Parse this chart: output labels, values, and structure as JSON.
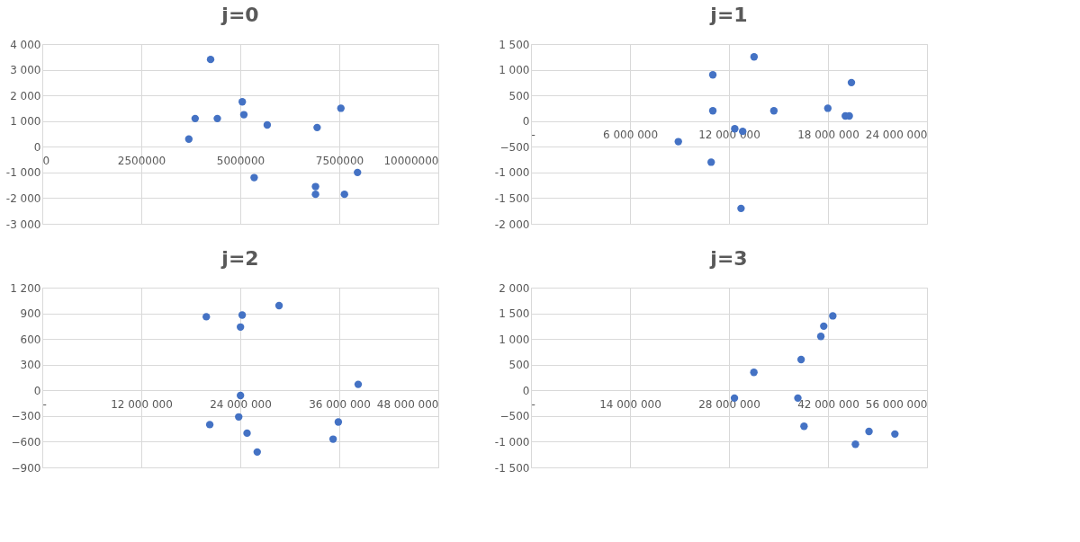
{
  "chart_data": [
    {
      "type": "scatter",
      "title": "j=0",
      "marker": "circle",
      "grid": true,
      "x": [
        3700000.0,
        3860000.0,
        4250000.0,
        4420000.0,
        5050000.0,
        5090000.0,
        5350000.0,
        5680000.0,
        6900000.0,
        6900000.0,
        6940000.0,
        7540000.0,
        7630000.0,
        7960000.0
      ],
      "series": [
        {
          "color": "#4472c4",
          "values": [
            300,
            1100,
            3400,
            1100,
            1750,
            1250,
            -1200,
            850,
            -1550,
            -1850,
            750,
            1500,
            -1850,
            -1000
          ]
        }
      ],
      "xlim": [
        0,
        10000000
      ],
      "xticks": [
        0,
        2500000,
        5000000,
        7500000,
        10000000
      ],
      "ylim": [
        -3000,
        4000
      ],
      "yticks": [
        {
          "value": -3000,
          "label": "-3 000"
        },
        {
          "value": -2000,
          "label": "-2 000"
        },
        {
          "value": -1000,
          "label": "-1 000"
        },
        0,
        {
          "value": 1000,
          "label": "1 000"
        },
        {
          "value": 2000,
          "label": "2 000"
        },
        {
          "value": 3000,
          "label": "3 000"
        },
        {
          "value": 4000,
          "label": "4 000"
        }
      ]
    },
    {
      "type": "scatter",
      "title": "j=1",
      "marker": "circle",
      "grid": true,
      "x": [
        8930000.0,
        10920000.0,
        11020000.0,
        11020000.0,
        12350000.0,
        12830000.0,
        12730000.0,
        13520000.0,
        14720000.0,
        17990000.0,
        19050000.0,
        19290000.0,
        19420000.0
      ],
      "series": [
        {
          "color": "#4472c4",
          "values": [
            -400,
            -800,
            900,
            200,
            -150,
            -200,
            -1700,
            1250,
            200,
            250,
            100,
            100,
            750
          ]
        }
      ],
      "xlim": [
        0,
        24000000
      ],
      "xticks": [
        {
          "value": 0,
          "label": "-"
        },
        {
          "value": 6000000,
          "label": "6 000 000"
        },
        {
          "value": 12000000,
          "label": "12 000 000"
        },
        {
          "value": 18000000,
          "label": "18 000 000"
        },
        {
          "value": 24000000,
          "label": "24 000 000"
        }
      ],
      "ylim": [
        -2000,
        1500
      ],
      "yticks": [
        {
          "value": -2000,
          "label": "-2 000"
        },
        {
          "value": -1500,
          "label": "-1 500"
        },
        {
          "value": -1000,
          "label": "-1 000"
        },
        -500,
        0,
        500,
        {
          "value": 1000,
          "label": "1 000"
        },
        {
          "value": 1500,
          "label": "1 500"
        }
      ]
    },
    {
      "type": "scatter",
      "title": "j=2",
      "marker": "circle",
      "grid": true,
      "x": [
        19880000.0,
        20300000.0,
        23810000.0,
        24020000.0,
        24020000.0,
        24230000.0,
        24820000.0,
        26050000.0,
        28700000.0,
        35250000.0,
        35880000.0,
        38290000.0
      ],
      "series": [
        {
          "color": "#4472c4",
          "values": [
            860,
            -400,
            -310,
            -60,
            740,
            880,
            -500,
            -720,
            990,
            -570,
            -370,
            70
          ]
        }
      ],
      "xlim": [
        0,
        48000000
      ],
      "xticks": [
        {
          "value": 0,
          "label": "-"
        },
        {
          "value": 12000000,
          "label": "12 000 000"
        },
        {
          "value": 24000000,
          "label": "24 000 000"
        },
        {
          "value": 36000000,
          "label": "36 000 000"
        },
        {
          "value": 48000000,
          "label": "48 000 000"
        }
      ],
      "ylim": [
        -900,
        1200
      ],
      "yticks": [
        -900,
        -600,
        -300,
        0,
        300,
        600,
        900,
        {
          "value": 1200,
          "label": "1 200"
        }
      ]
    },
    {
      "type": "scatter",
      "title": "j=3",
      "marker": "circle",
      "grid": true,
      "x": [
        28770000.0,
        31520000.0,
        37740000.0,
        38200000.0,
        38610000.0,
        40990000.0,
        41400000.0,
        42680000.0,
        45880000.0,
        47800000.0,
        51460000.0
      ],
      "series": [
        {
          "color": "#4472c4",
          "values": [
            -150,
            350,
            -150,
            600,
            -700,
            1050,
            1250,
            1450,
            -1050,
            -800,
            -850
          ]
        }
      ],
      "xlim": [
        0,
        56000000
      ],
      "xticks": [
        {
          "value": 0,
          "label": "-"
        },
        {
          "value": 14000000,
          "label": "14 000 000"
        },
        {
          "value": 28000000,
          "label": "28 000 000"
        },
        {
          "value": 42000000,
          "label": "42 000 000"
        },
        {
          "value": 56000000,
          "label": "56 000 000"
        }
      ],
      "ylim": [
        -1500,
        2000
      ],
      "yticks": [
        {
          "value": -1500,
          "label": "-1 500"
        },
        {
          "value": -1000,
          "label": "-1 000"
        },
        -500,
        0,
        500,
        {
          "value": 1000,
          "label": "1 000"
        },
        {
          "value": 1500,
          "label": "1 500"
        },
        {
          "value": 2000,
          "label": "2 000"
        }
      ]
    }
  ]
}
